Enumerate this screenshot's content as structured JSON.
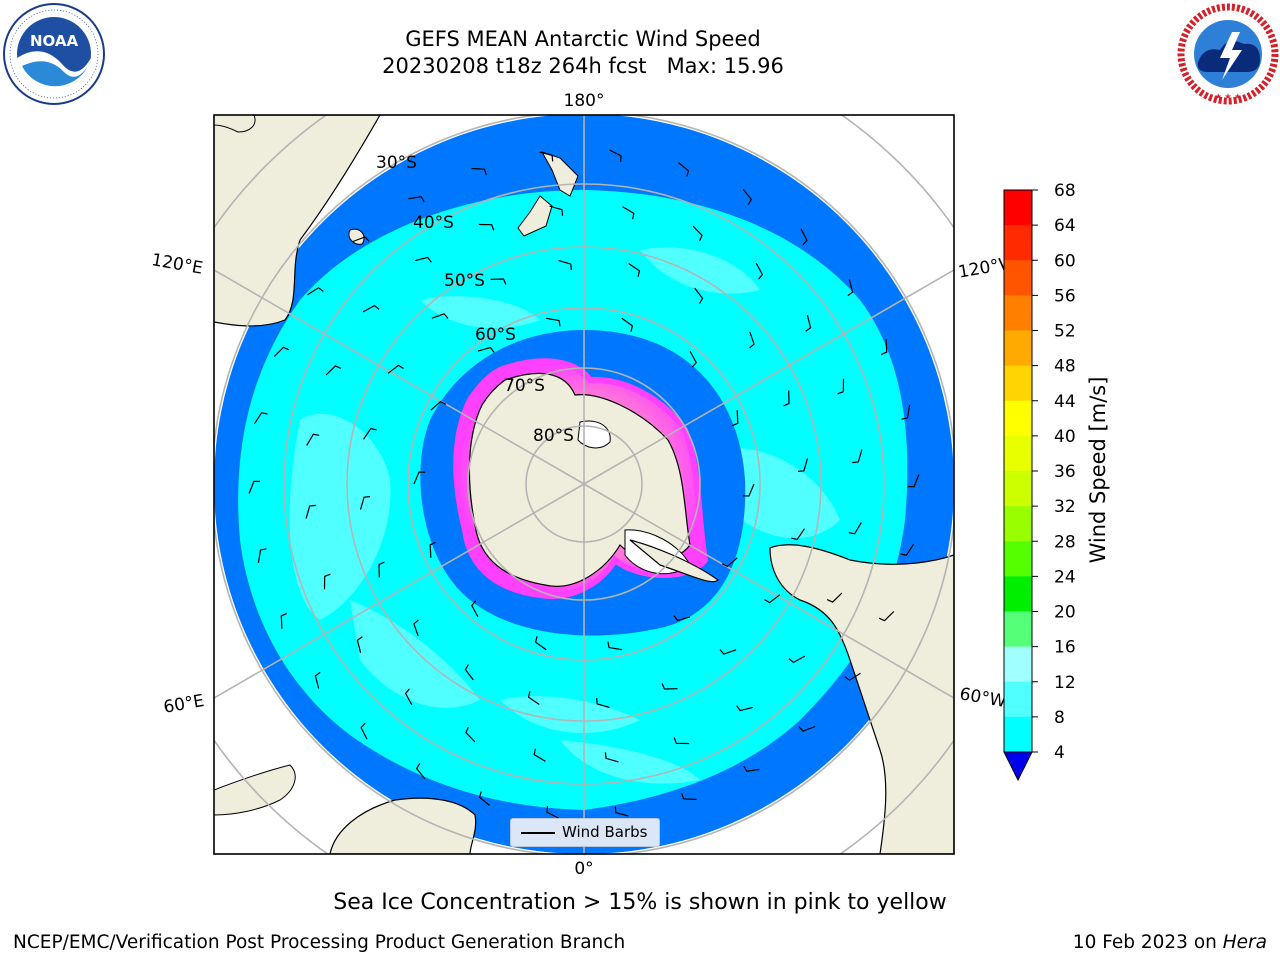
{
  "header": {
    "title_line1": "GEFS MEAN Antarctic Wind Speed",
    "title_line2": "20230208 t18z 264h fcst   Max: 15.96"
  },
  "logos": {
    "left": {
      "name": "noaa-logo",
      "text": "NOAA",
      "ring_text": "NATIONAL OCEANIC AND ATMOSPHERIC ADMINISTRATION · U.S. DEPARTMENT OF COMMERCE"
    },
    "right": {
      "name": "nws-logo",
      "ring_text": "NATIONAL WEATHER SERVICE"
    }
  },
  "map": {
    "projection": "south-polar-stereographic",
    "longitude_labels": {
      "top": "180°",
      "bottom": "0°",
      "upper_left": "120°E",
      "upper_right": "120°W",
      "lower_left": "60°E",
      "lower_right": "60°W"
    },
    "latitude_labels": [
      "30°S",
      "40°S",
      "50°S",
      "60°S",
      "70°S",
      "80°S"
    ],
    "legend_label": "Wind Barbs",
    "colors": {
      "land": "#efeedc",
      "ocean_4_8": "#0077ff",
      "ocean_8_12": "#00ffff",
      "ocean_12_16": "#50ffff",
      "sea_ice_low": "#ff40ff",
      "sea_ice_high": "#ffff80",
      "grid": "#b4b4b4"
    }
  },
  "colorbar": {
    "label": "Wind Speed [m/s]",
    "ticks": [
      "68",
      "64",
      "60",
      "56",
      "52",
      "48",
      "44",
      "40",
      "36",
      "32",
      "28",
      "24",
      "20",
      "16",
      "12",
      "8",
      "4"
    ],
    "colors": [
      "#ff0000",
      "#ff2a00",
      "#ff5500",
      "#ff8000",
      "#ffaa00",
      "#ffd400",
      "#ffff00",
      "#e8ff00",
      "#ccff00",
      "#99ff00",
      "#55ff00",
      "#00ee00",
      "#55ff77",
      "#a0ffff",
      "#50ffff",
      "#00ffff",
      "#0077ff"
    ],
    "under_color": "#0000ee"
  },
  "note": "Sea Ice Concentration > 15% is shown in pink to yellow",
  "footer": {
    "left": "NCEP/EMC/Verification Post Processing Product Generation Branch",
    "right_date": "10 Feb 2023 on ",
    "right_host": "Hera"
  }
}
